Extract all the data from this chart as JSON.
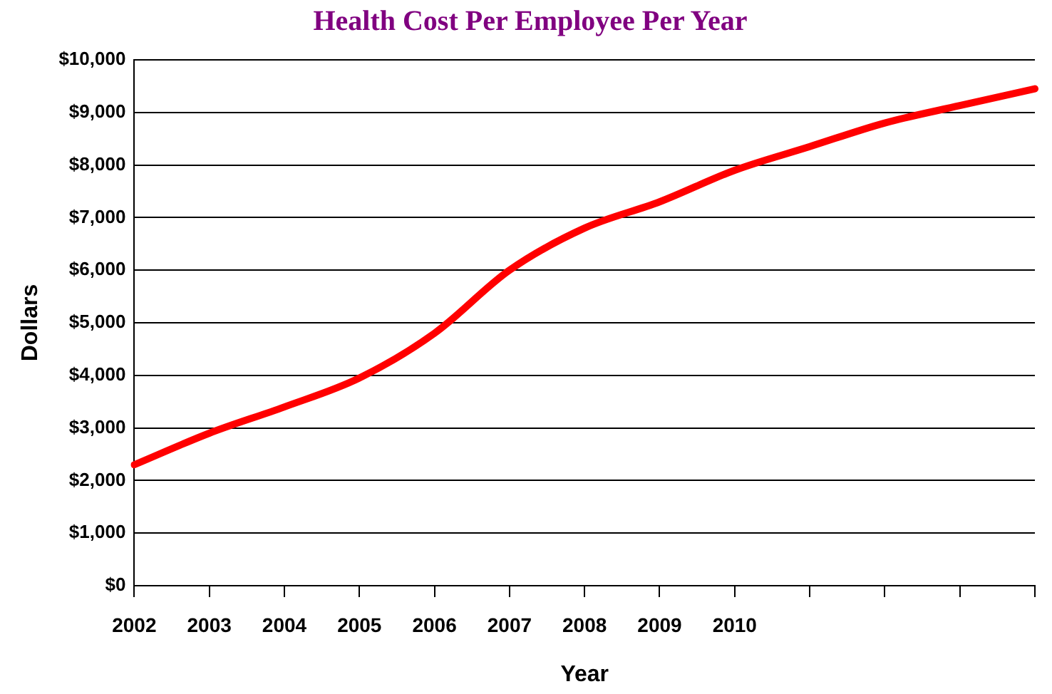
{
  "chart_data": {
    "type": "line",
    "title": "Health Cost Per Employee Per Year",
    "xlabel": "Year",
    "ylabel": "Dollars",
    "categories": [
      "2002",
      "2003",
      "2004",
      "2005",
      "2006",
      "2007",
      "2008",
      "2009",
      "2010",
      null,
      null,
      null,
      null
    ],
    "series": [
      {
        "color": "#ff0000",
        "values": [
          2300,
          2900,
          3400,
          3950,
          4800,
          6000,
          6800,
          7300,
          7900,
          8350,
          8800,
          9130,
          9450
        ]
      }
    ],
    "ylim": [
      0,
      10000
    ],
    "yticks": [
      {
        "value": 0,
        "label": "$0"
      },
      {
        "value": 1000,
        "label": "$1,000"
      },
      {
        "value": 2000,
        "label": "$2,000"
      },
      {
        "value": 3000,
        "label": "$3,000"
      },
      {
        "value": 4000,
        "label": "$4,000"
      },
      {
        "value": 5000,
        "label": "$5,000"
      },
      {
        "value": 6000,
        "label": "$6,000"
      },
      {
        "value": 7000,
        "label": "$7,000"
      },
      {
        "value": 8000,
        "label": "$8,000"
      },
      {
        "value": 9000,
        "label": "$9,000"
      },
      {
        "value": 10000,
        "label": "$10,000"
      }
    ],
    "grid": "y",
    "legend": false,
    "marker": "none",
    "line_style": "solid"
  }
}
